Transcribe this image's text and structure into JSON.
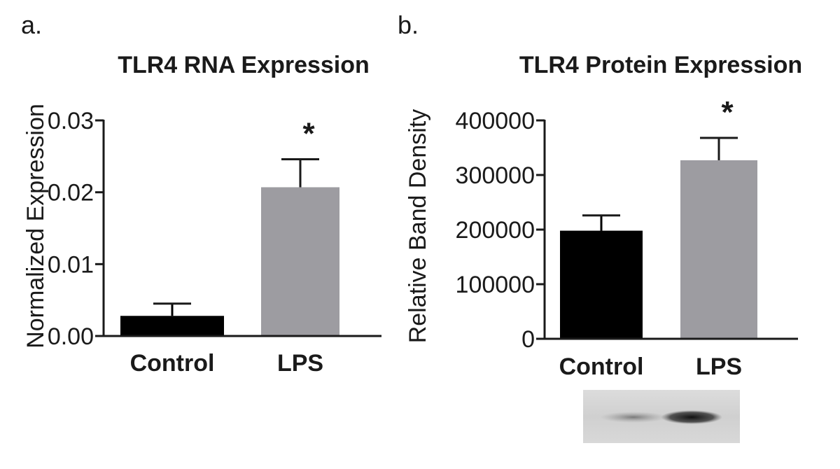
{
  "chart_data": [
    {
      "type": "bar",
      "panel_label": "a.",
      "title": "TLR4  RNA Expression",
      "xlabel": "",
      "ylabel": "Normalized Expression",
      "categories": [
        "Control",
        "LPS"
      ],
      "values": [
        0.0028,
        0.0207
      ],
      "errors": [
        0.0017,
        0.0039
      ],
      "bar_colors": [
        "#000000",
        "#9d9ca1"
      ],
      "ylim": [
        0,
        0.03
      ],
      "yticks": [
        0,
        0.01,
        0.02,
        0.03
      ],
      "ytick_labels": [
        "0.00",
        "0.01",
        "0.02",
        "0.03"
      ],
      "significance": [
        "",
        "*"
      ],
      "grid": false
    },
    {
      "type": "bar",
      "panel_label": "b.",
      "title": "TLR4  Protein Expression",
      "xlabel": "",
      "ylabel": "Relative Band Density",
      "categories": [
        "Control",
        "LPS"
      ],
      "values": [
        198000,
        327000
      ],
      "errors": [
        28000,
        41000
      ],
      "bar_colors": [
        "#000000",
        "#9d9ca1"
      ],
      "ylim": [
        0,
        400000
      ],
      "yticks": [
        0,
        100000,
        200000,
        300000,
        400000
      ],
      "ytick_labels": [
        "0",
        "100000",
        "200000",
        "300000",
        "400000"
      ],
      "significance": [
        "",
        "*"
      ],
      "grid": false,
      "blot_image": "western-blot-bands"
    }
  ]
}
